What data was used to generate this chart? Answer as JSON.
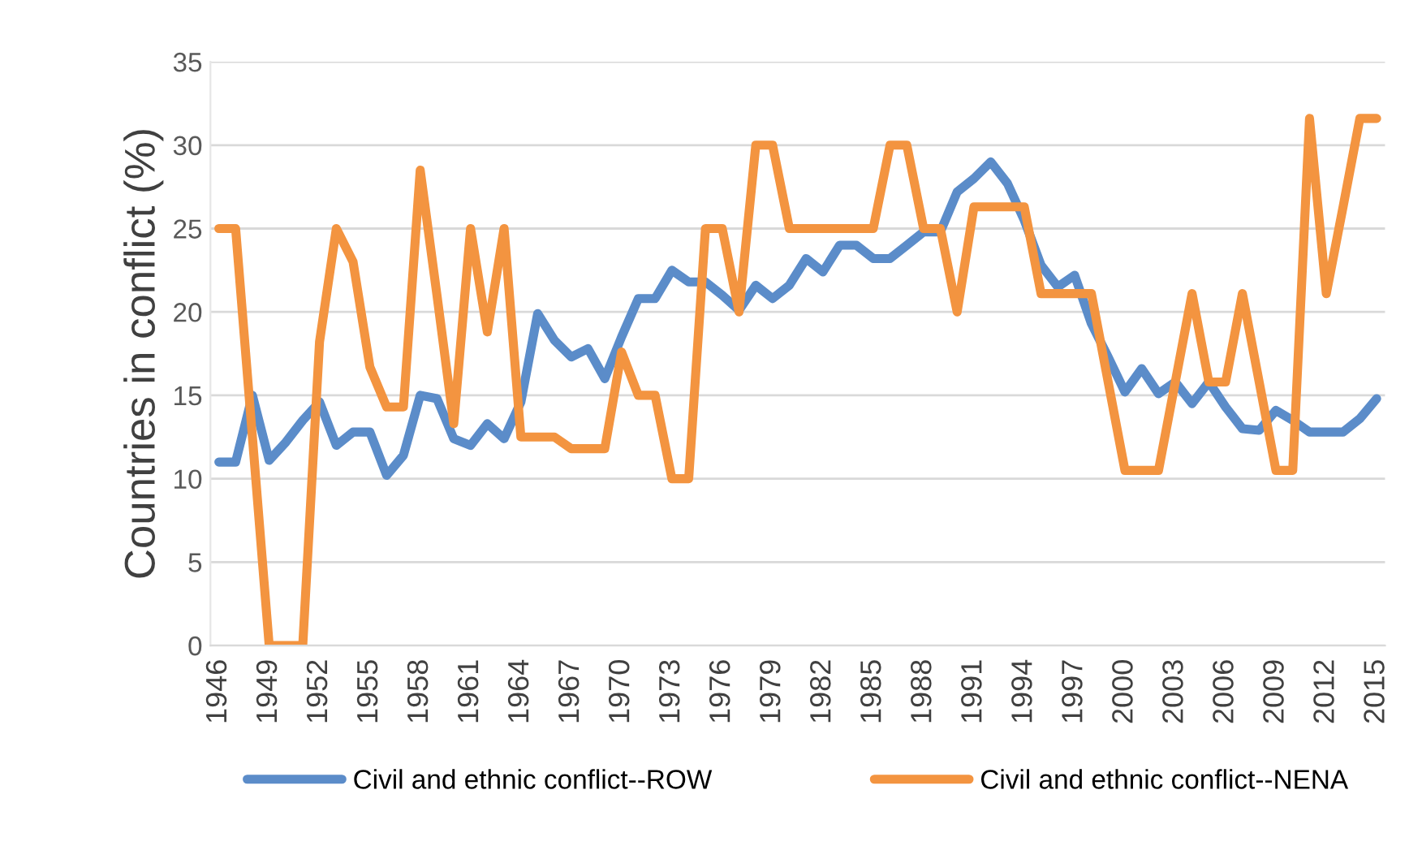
{
  "chart_data": {
    "type": "line",
    "ylabel": "Countries in conflict (%)",
    "categories": [
      "1946",
      null,
      null,
      "1949",
      null,
      null,
      "1952",
      null,
      null,
      "1955",
      null,
      null,
      "1958",
      null,
      null,
      "1961",
      null,
      null,
      "1964",
      null,
      null,
      "1967",
      null,
      null,
      "1970",
      null,
      null,
      "1973",
      null,
      null,
      "1976",
      null,
      null,
      "1979",
      null,
      null,
      "1982",
      null,
      null,
      "1985",
      null,
      null,
      "1988",
      null,
      null,
      "1991",
      null,
      null,
      "1994",
      null,
      null,
      "1997",
      null,
      null,
      "2000",
      null,
      null,
      "2003",
      null,
      null,
      "2006",
      null,
      null,
      "2009",
      null,
      null,
      "2012",
      null,
      null,
      "2015"
    ],
    "series": [
      {
        "name": "Civil and ethnic conflict--ROW",
        "color": "#5b8cc9",
        "values": [
          11,
          11,
          15,
          11.1,
          12.2,
          13.5,
          14.6,
          12,
          12.8,
          12.8,
          10.2,
          11.4,
          15,
          14.8,
          12.4,
          12,
          13.3,
          12.4,
          14.6,
          19.9,
          18.3,
          17.3,
          17.8,
          16,
          18.5,
          20.8,
          20.8,
          22.5,
          21.8,
          21.8,
          21,
          20.1,
          21.6,
          20.8,
          21.6,
          23.2,
          22.4,
          24,
          24,
          23.2,
          23.2,
          24,
          24.8,
          24.8,
          27.2,
          28,
          29,
          27.7,
          25.5,
          22.8,
          21.5,
          22.2,
          19.3,
          17.3,
          15.2,
          16.6,
          15.1,
          15.8,
          14.5,
          15.8,
          14.3,
          13,
          12.9,
          14.1,
          13.5,
          12.8,
          12.8,
          12.8,
          13.6,
          14.8
        ]
      },
      {
        "name": "Civil and ethnic conflict--NENA",
        "color": "#f39440",
        "values": [
          25,
          25,
          12.5,
          0,
          0,
          0,
          18.2,
          25,
          23,
          16.7,
          14.3,
          14.3,
          28.5,
          21,
          13.3,
          25,
          18.8,
          25,
          12.5,
          12.5,
          12.5,
          11.8,
          11.8,
          11.8,
          17.6,
          15,
          15,
          10,
          10,
          25,
          25,
          20,
          30,
          30,
          25,
          25,
          25,
          25,
          25,
          25,
          30,
          30,
          25,
          25,
          20,
          26.3,
          26.3,
          26.3,
          26.3,
          21.1,
          21.1,
          21.1,
          21.1,
          15.8,
          10.5,
          10.5,
          10.5,
          15.8,
          21.1,
          15.8,
          15.8,
          21.1,
          15.8,
          10.5,
          10.5,
          31.6,
          21.1,
          26.3,
          31.6,
          31.6
        ]
      }
    ],
    "ylim": [
      0,
      35
    ],
    "yticks": [
      0,
      5,
      10,
      15,
      20,
      25,
      30,
      35
    ],
    "grid": "y",
    "legend": "bottom",
    "marker": "none",
    "line_style": "solid"
  }
}
